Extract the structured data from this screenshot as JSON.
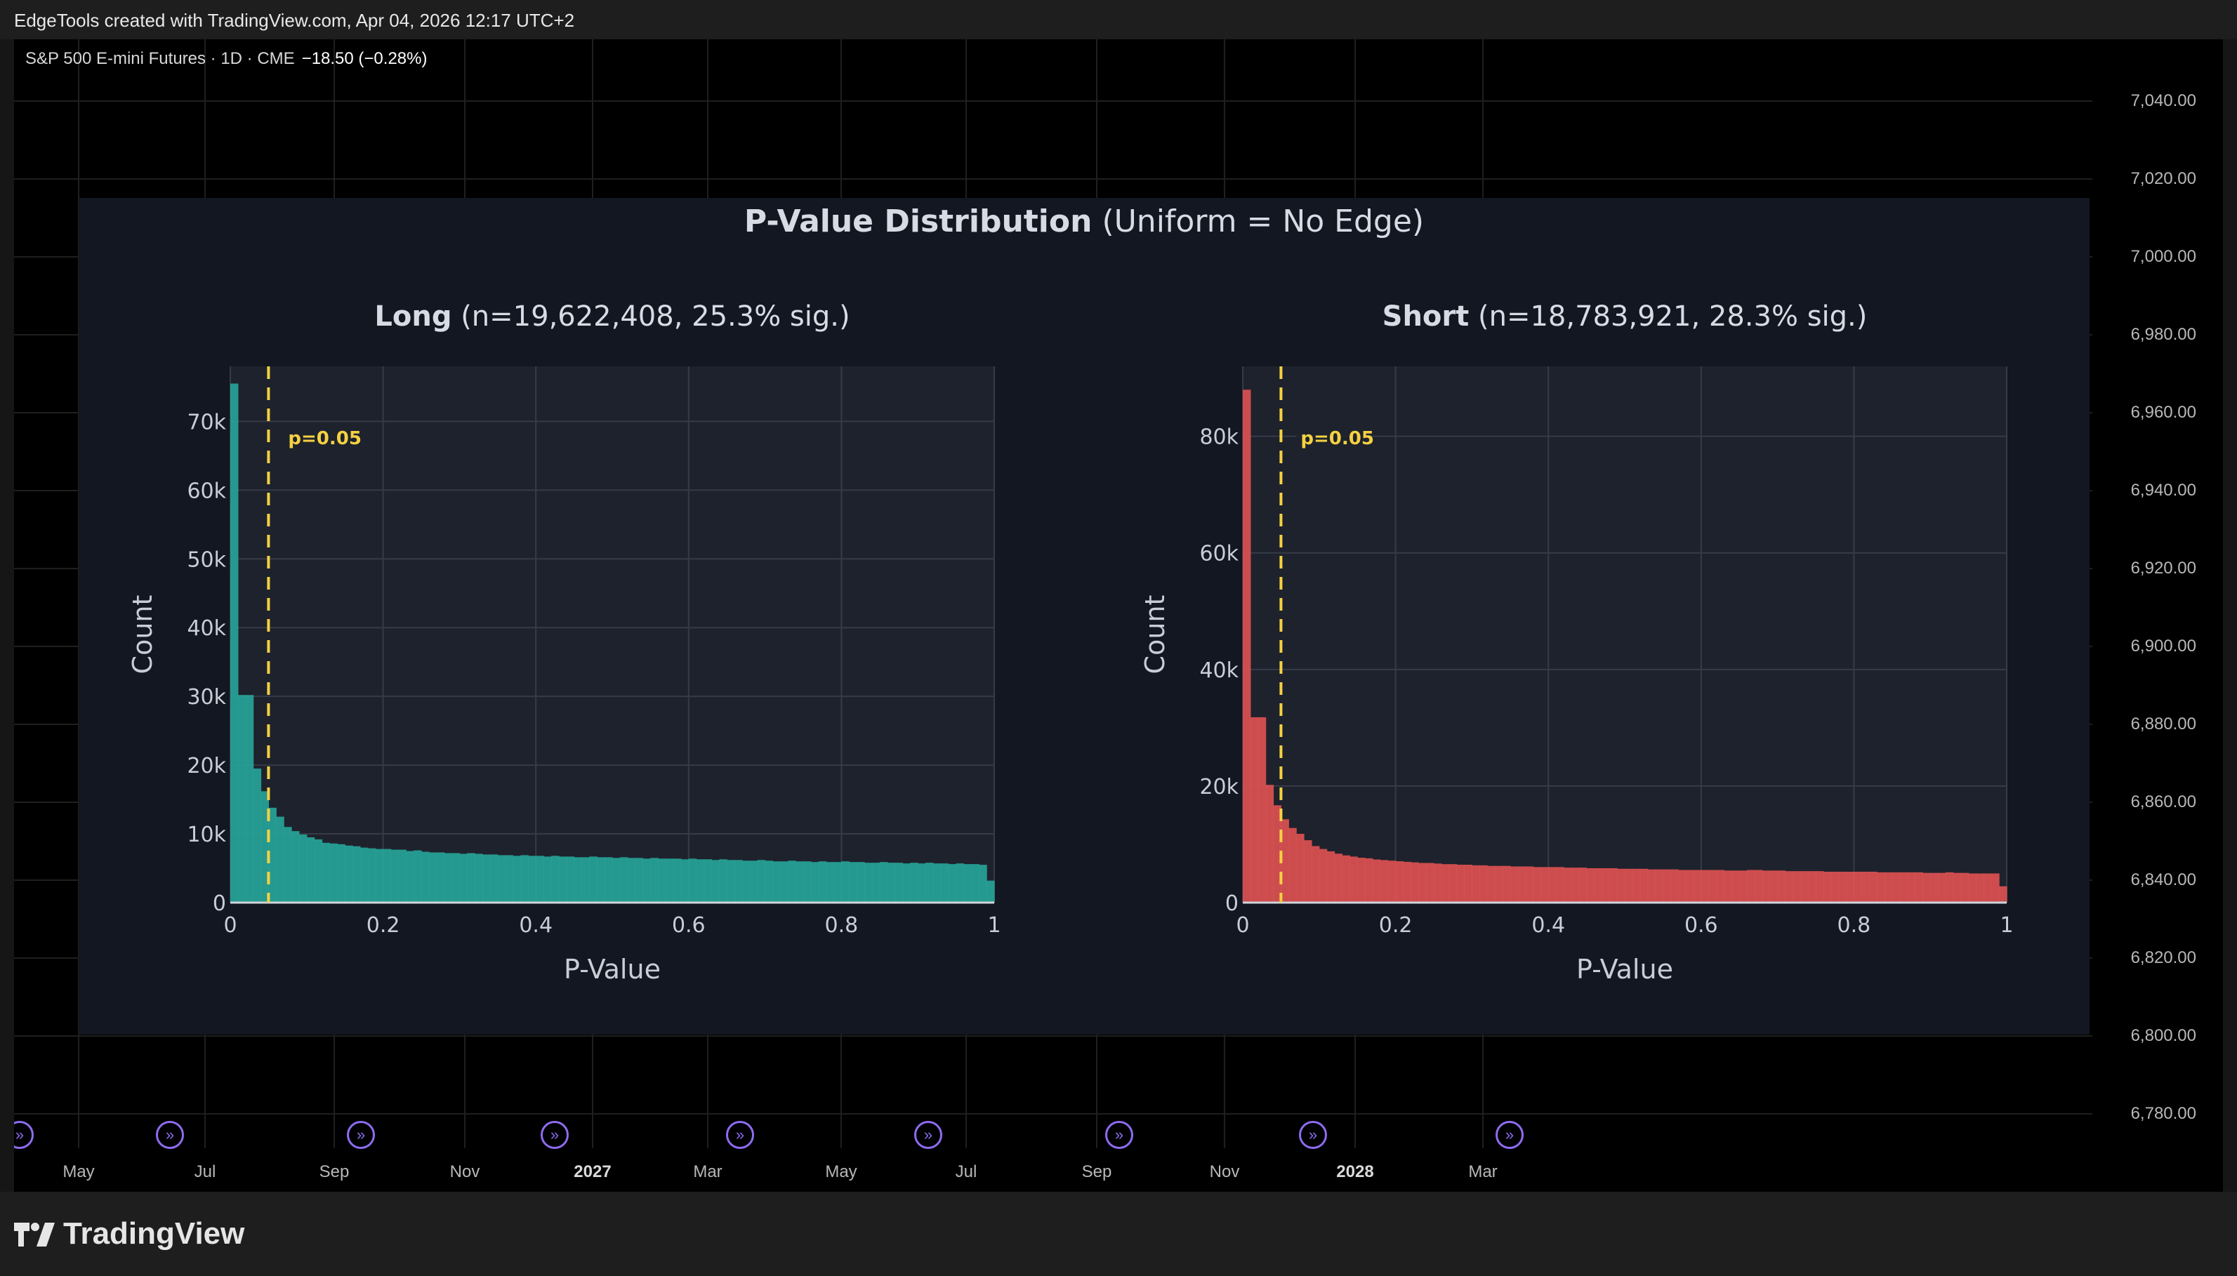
{
  "header": {
    "text": "EdgeTools created with TradingView.com, Apr 04, 2026 12:17 UTC+2"
  },
  "symbol": {
    "name": "S&P 500 E-mini Futures · 1D · CME",
    "change": "−18.50 (−0.28%)"
  },
  "price_axis": [
    "7,040.00",
    "7,020.00",
    "7,000.00",
    "6,980.00",
    "6,960.00",
    "6,940.00",
    "6,920.00",
    "6,900.00",
    "6,880.00",
    "6,860.00",
    "6,840.00",
    "6,820.00",
    "6,800.00",
    "6,780.00"
  ],
  "time_axis": [
    {
      "label": "May",
      "bold": false
    },
    {
      "label": "Jul",
      "bold": false
    },
    {
      "label": "Sep",
      "bold": false
    },
    {
      "label": "Nov",
      "bold": false
    },
    {
      "label": "2027",
      "bold": true
    },
    {
      "label": "Mar",
      "bold": false
    },
    {
      "label": "May",
      "bold": false
    },
    {
      "label": "Jul",
      "bold": false
    },
    {
      "label": "Sep",
      "bold": false
    },
    {
      "label": "Nov",
      "bold": false
    },
    {
      "label": "2028",
      "bold": true
    },
    {
      "label": "Mar",
      "bold": false
    }
  ],
  "footer": {
    "brand": "TradingView",
    "logo_icon": "tradingview-logo-icon"
  },
  "event_icon": "dividend-event-icon",
  "colors": {
    "long": "#26a69a",
    "short": "#e05252",
    "threshold": "#f5d142",
    "panel": "#131722",
    "plot": "#1e222d"
  },
  "figure": {
    "title_bold": "P-Value Distribution",
    "title_rest": "(Uniform = No Edge)"
  },
  "chart_data": [
    {
      "type": "bar",
      "title_bold": "Long",
      "title_rest": "(n=19,622,408, 25.3% sig.)",
      "xlabel": "P-Value",
      "ylabel": "Count",
      "xlim": [
        0,
        1
      ],
      "ylim": [
        0,
        78000
      ],
      "xticks": [
        0,
        0.2,
        0.4,
        0.6,
        0.8,
        1
      ],
      "xtick_labels": [
        "0",
        "0.2",
        "0.4",
        "0.6",
        "0.8",
        "1"
      ],
      "yticks": [
        0,
        10000,
        20000,
        30000,
        40000,
        50000,
        60000,
        70000
      ],
      "ytick_labels": [
        "0",
        "10k",
        "20k",
        "30k",
        "40k",
        "50k",
        "60k",
        "70k"
      ],
      "bin_width": 0.01,
      "values": [
        75500,
        30200,
        30200,
        19500,
        16200,
        13800,
        12500,
        11000,
        10400,
        9900,
        9500,
        9200,
        8700,
        8600,
        8500,
        8300,
        8200,
        8000,
        7900,
        7800,
        7800,
        7700,
        7700,
        7500,
        7600,
        7400,
        7300,
        7300,
        7200,
        7200,
        7100,
        7200,
        7100,
        7000,
        7000,
        6900,
        6900,
        6800,
        6900,
        6800,
        6800,
        6700,
        6800,
        6700,
        6700,
        6600,
        6600,
        6700,
        6600,
        6600,
        6500,
        6600,
        6500,
        6500,
        6400,
        6500,
        6400,
        6400,
        6400,
        6300,
        6400,
        6300,
        6300,
        6200,
        6300,
        6200,
        6200,
        6100,
        6100,
        6200,
        6100,
        6000,
        6000,
        6100,
        6000,
        6000,
        5900,
        6000,
        5900,
        5900,
        6000,
        5900,
        5900,
        5800,
        5800,
        5900,
        5800,
        5800,
        5700,
        5800,
        5700,
        5800,
        5700,
        5700,
        5600,
        5700,
        5600,
        5600,
        5500,
        3200
      ],
      "threshold": {
        "x": 0.05,
        "label": "p=0.05"
      }
    },
    {
      "type": "bar",
      "title_bold": "Short",
      "title_rest": "(n=18,783,921, 28.3% sig.)",
      "xlabel": "P-Value",
      "ylabel": "Count",
      "xlim": [
        0,
        1
      ],
      "ylim": [
        0,
        92000
      ],
      "xticks": [
        0,
        0.2,
        0.4,
        0.6,
        0.8,
        1
      ],
      "xtick_labels": [
        "0",
        "0.2",
        "0.4",
        "0.6",
        "0.8",
        "1"
      ],
      "yticks": [
        0,
        20000,
        40000,
        60000,
        80000
      ],
      "ytick_labels": [
        "0",
        "20k",
        "40k",
        "60k",
        "80k"
      ],
      "bin_width": 0.01,
      "values": [
        88000,
        31800,
        31800,
        20200,
        16700,
        14300,
        12800,
        11800,
        10700,
        9700,
        9200,
        8800,
        8400,
        8100,
        7900,
        7700,
        7600,
        7400,
        7300,
        7200,
        7100,
        7000,
        6900,
        6800,
        6800,
        6700,
        6600,
        6600,
        6500,
        6500,
        6400,
        6400,
        6300,
        6300,
        6300,
        6200,
        6200,
        6200,
        6100,
        6100,
        6100,
        6100,
        6000,
        6000,
        6000,
        5900,
        5900,
        5900,
        5900,
        5800,
        5800,
        5800,
        5800,
        5700,
        5700,
        5700,
        5700,
        5600,
        5600,
        5600,
        5600,
        5600,
        5600,
        5500,
        5500,
        5500,
        5600,
        5600,
        5500,
        5500,
        5500,
        5400,
        5400,
        5400,
        5400,
        5400,
        5300,
        5300,
        5300,
        5300,
        5300,
        5300,
        5300,
        5200,
        5200,
        5200,
        5200,
        5200,
        5200,
        5100,
        5100,
        5100,
        5200,
        5100,
        5100,
        5000,
        5000,
        5000,
        5000,
        2800
      ],
      "threshold": {
        "x": 0.05,
        "label": "p=0.05"
      }
    }
  ]
}
